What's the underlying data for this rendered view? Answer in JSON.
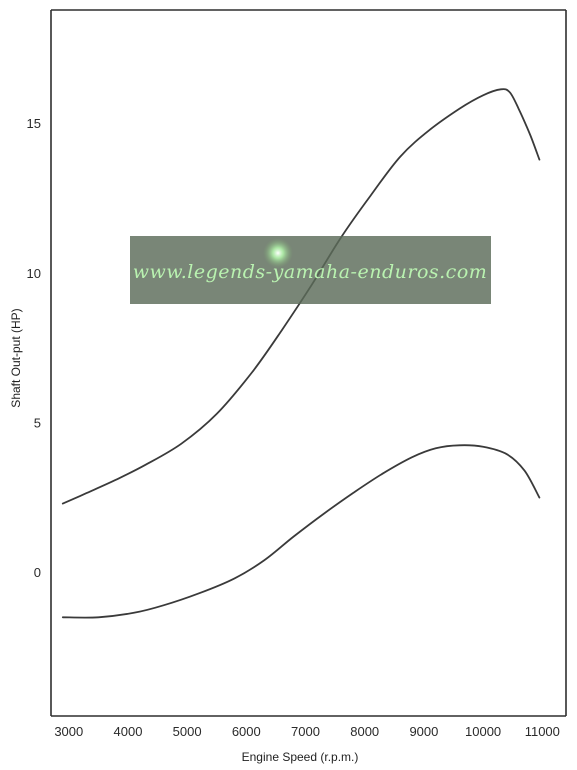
{
  "chart_data": {
    "type": "line",
    "title": "",
    "xlabel": "Engine Speed (r.p.m.)",
    "ylabel": "Shaft Out-put (HP)",
    "x_ticks": [
      "3000",
      "4000",
      "5000",
      "6000",
      "7000",
      "8000",
      "9000",
      "10000",
      "11000"
    ],
    "y_ticks": [
      "0",
      "5",
      "10",
      "15"
    ],
    "xlim": [
      2700,
      11400
    ],
    "ylim": [
      -4.8,
      18.8
    ],
    "grid": false,
    "legend": "none",
    "series": [
      {
        "color": "#3a3a3a",
        "x": [
          2900,
          3300,
          3800,
          4300,
          4900,
          5500,
          6100,
          6600,
          7100,
          7600,
          8100,
          8600,
          9100,
          9600,
          10000,
          10300,
          10450,
          10600,
          10800,
          10950
        ],
        "y": [
          2.3,
          2.65,
          3.1,
          3.6,
          4.3,
          5.3,
          6.7,
          8.1,
          9.6,
          11.2,
          12.6,
          13.9,
          14.8,
          15.5,
          15.95,
          16.15,
          16.05,
          15.5,
          14.6,
          13.8
        ]
      },
      {
        "color": "#3a3a3a",
        "x": [
          2900,
          3500,
          4100,
          4600,
          5200,
          5800,
          6300,
          6800,
          7300,
          7800,
          8300,
          8800,
          9200,
          9600,
          10000,
          10400,
          10700,
          10950
        ],
        "y": [
          -1.5,
          -1.5,
          -1.35,
          -1.1,
          -0.7,
          -0.2,
          0.4,
          1.2,
          1.95,
          2.65,
          3.3,
          3.85,
          4.15,
          4.25,
          4.2,
          3.95,
          3.4,
          2.5
        ]
      }
    ]
  },
  "watermark": {
    "text": "www.legends-yamaha-enduros.com"
  }
}
